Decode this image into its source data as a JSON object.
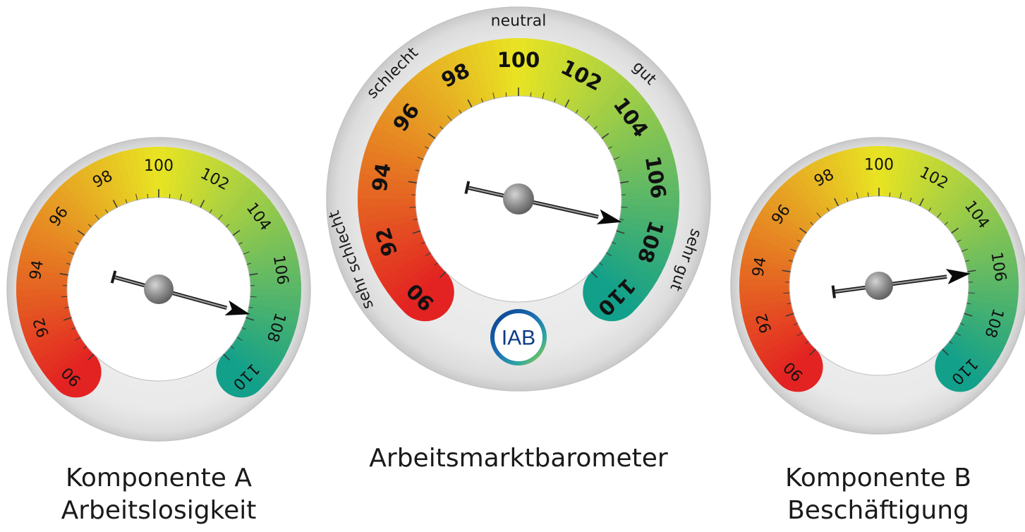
{
  "chart_data": [
    {
      "type": "gauge",
      "gauge": "left",
      "scale_min": 90,
      "scale_max": 110,
      "tick_labels": [
        "90",
        "92",
        "94",
        "96",
        "98",
        "100",
        "102",
        "104",
        "106",
        "108",
        "110"
      ],
      "value": 107.8,
      "colors": {
        "low": "#e32222",
        "mid": "#e8e423",
        "high": "#12a08a"
      },
      "caption_line1": "Komponente A",
      "caption_line2": "Arbeitslosigkeit"
    },
    {
      "type": "gauge",
      "gauge": "center",
      "scale_min": 90,
      "scale_max": 110,
      "tick_labels": [
        "90",
        "92",
        "94",
        "96",
        "98",
        "100",
        "102",
        "104",
        "106",
        "108",
        "110"
      ],
      "value": 107.6,
      "zones": [
        "sehr schlecht",
        "schlecht",
        "neutral",
        "gut",
        "sehr gut"
      ],
      "logo_text": "IAB",
      "colors": {
        "low": "#e32222",
        "mid": "#e8e423",
        "high": "#12a08a"
      },
      "caption_line1": "Arbeitsmarktbarometer"
    },
    {
      "type": "gauge",
      "gauge": "right",
      "scale_min": 90,
      "scale_max": 110,
      "tick_labels": [
        "90",
        "92",
        "94",
        "96",
        "98",
        "100",
        "102",
        "104",
        "106",
        "108",
        "110"
      ],
      "value": 106.1,
      "colors": {
        "low": "#e32222",
        "mid": "#e8e423",
        "high": "#12a08a"
      },
      "caption_line1": "Komponente B",
      "caption_line2": "Beschäftigung"
    }
  ]
}
